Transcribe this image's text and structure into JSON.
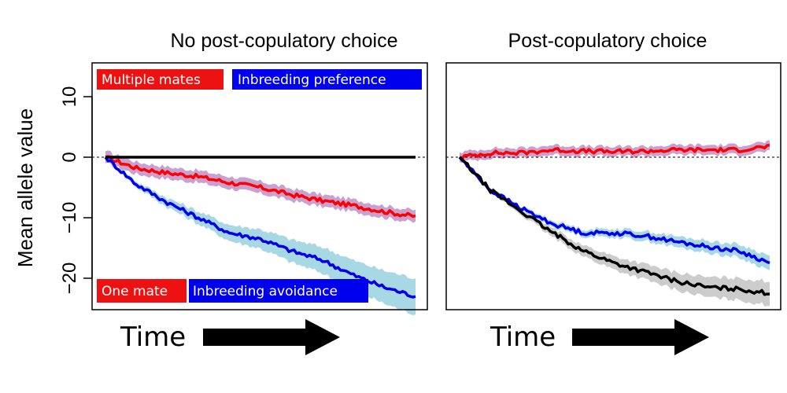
{
  "chart_data": [
    {
      "type": "line",
      "title": "No post-copulatory choice",
      "ylabel": "Mean allele value",
      "xlabel": "Time",
      "ylim": [
        -25,
        15
      ],
      "yticks": [
        10,
        0,
        -10,
        -20
      ],
      "reference_line": 0,
      "labels": {
        "top_left": "Multiple mates",
        "top_right": "Inbreeding preference",
        "bottom_left": "One mate",
        "bottom_right": "Inbreeding avoidance"
      },
      "series": [
        {
          "color": "#ff0000",
          "band_color": "#c9a0d0",
          "band_width": 1.0,
          "x": [
            0,
            0.1,
            0.2,
            0.3,
            0.4,
            0.5,
            0.6,
            0.7,
            0.8,
            0.9,
            1.0
          ],
          "y": [
            0,
            -1.8,
            -2.6,
            -3.2,
            -4.2,
            -5.0,
            -6.2,
            -7.2,
            -8.0,
            -9.0,
            -9.8
          ]
        },
        {
          "color": "#0000ee",
          "band_color": "#a8d8e4",
          "band_width_start": 0.2,
          "band_width_end": 3.0,
          "x": [
            0,
            0.1,
            0.2,
            0.3,
            0.4,
            0.5,
            0.6,
            0.7,
            0.8,
            0.9,
            1.0
          ],
          "y": [
            0,
            -4.5,
            -7.5,
            -10.0,
            -12.5,
            -13.5,
            -15.5,
            -17.0,
            -19.5,
            -21.5,
            -23.0
          ]
        },
        {
          "color": "#000000",
          "x": [
            0,
            1.0
          ],
          "y": [
            0,
            0
          ]
        }
      ]
    },
    {
      "type": "line",
      "title": "Post-copulatory choice",
      "ylim": [
        -25,
        15
      ],
      "reference_line": 0,
      "xlabel": "Time",
      "series": [
        {
          "color": "#ff0000",
          "band_color": "#c9a0d0",
          "band_width": 0.8,
          "x": [
            0,
            0.1,
            0.2,
            0.3,
            0.4,
            0.5,
            0.6,
            0.7,
            0.8,
            0.9,
            1.0
          ],
          "y": [
            0,
            0.7,
            0.7,
            1.2,
            1.0,
            0.9,
            1.0,
            1.2,
            1.2,
            1.2,
            1.8
          ]
        },
        {
          "color": "#0000ee",
          "band_color": "#a8d8e4",
          "band_width_start": 0.2,
          "band_width_end": 1.2,
          "x": [
            0,
            0.1,
            0.2,
            0.3,
            0.4,
            0.5,
            0.6,
            0.7,
            0.8,
            0.9,
            1.0
          ],
          "y": [
            0,
            -5.5,
            -8.5,
            -11.0,
            -12.5,
            -12.5,
            -13.0,
            -14.0,
            -14.8,
            -15.5,
            -17.5
          ]
        },
        {
          "color": "#000000",
          "band_color": "#cccccc",
          "band_width_start": 0.2,
          "band_width_end": 2.0,
          "x": [
            0,
            0.1,
            0.2,
            0.3,
            0.4,
            0.5,
            0.6,
            0.7,
            0.8,
            0.9,
            1.0
          ],
          "y": [
            0,
            -5.5,
            -9.0,
            -12.5,
            -15.5,
            -17.5,
            -19.0,
            -20.5,
            -21.5,
            -21.8,
            -22.5
          ]
        }
      ]
    }
  ]
}
